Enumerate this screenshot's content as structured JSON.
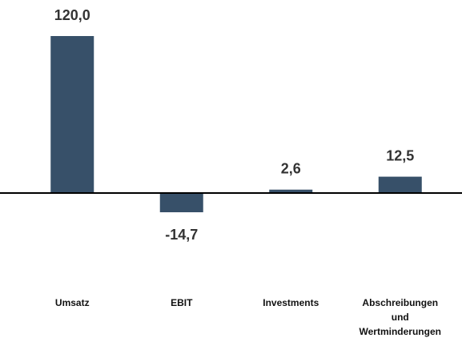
{
  "chart_data": {
    "type": "bar",
    "categories": [
      "Umsatz",
      "EBIT",
      "Investments",
      "Abschreibungen und Wertminderungen"
    ],
    "values": [
      120.0,
      -14.7,
      2.6,
      12.5
    ],
    "value_labels": [
      "120,0",
      "-14,7",
      "2,6",
      "12,5"
    ],
    "color": "#375069"
  }
}
